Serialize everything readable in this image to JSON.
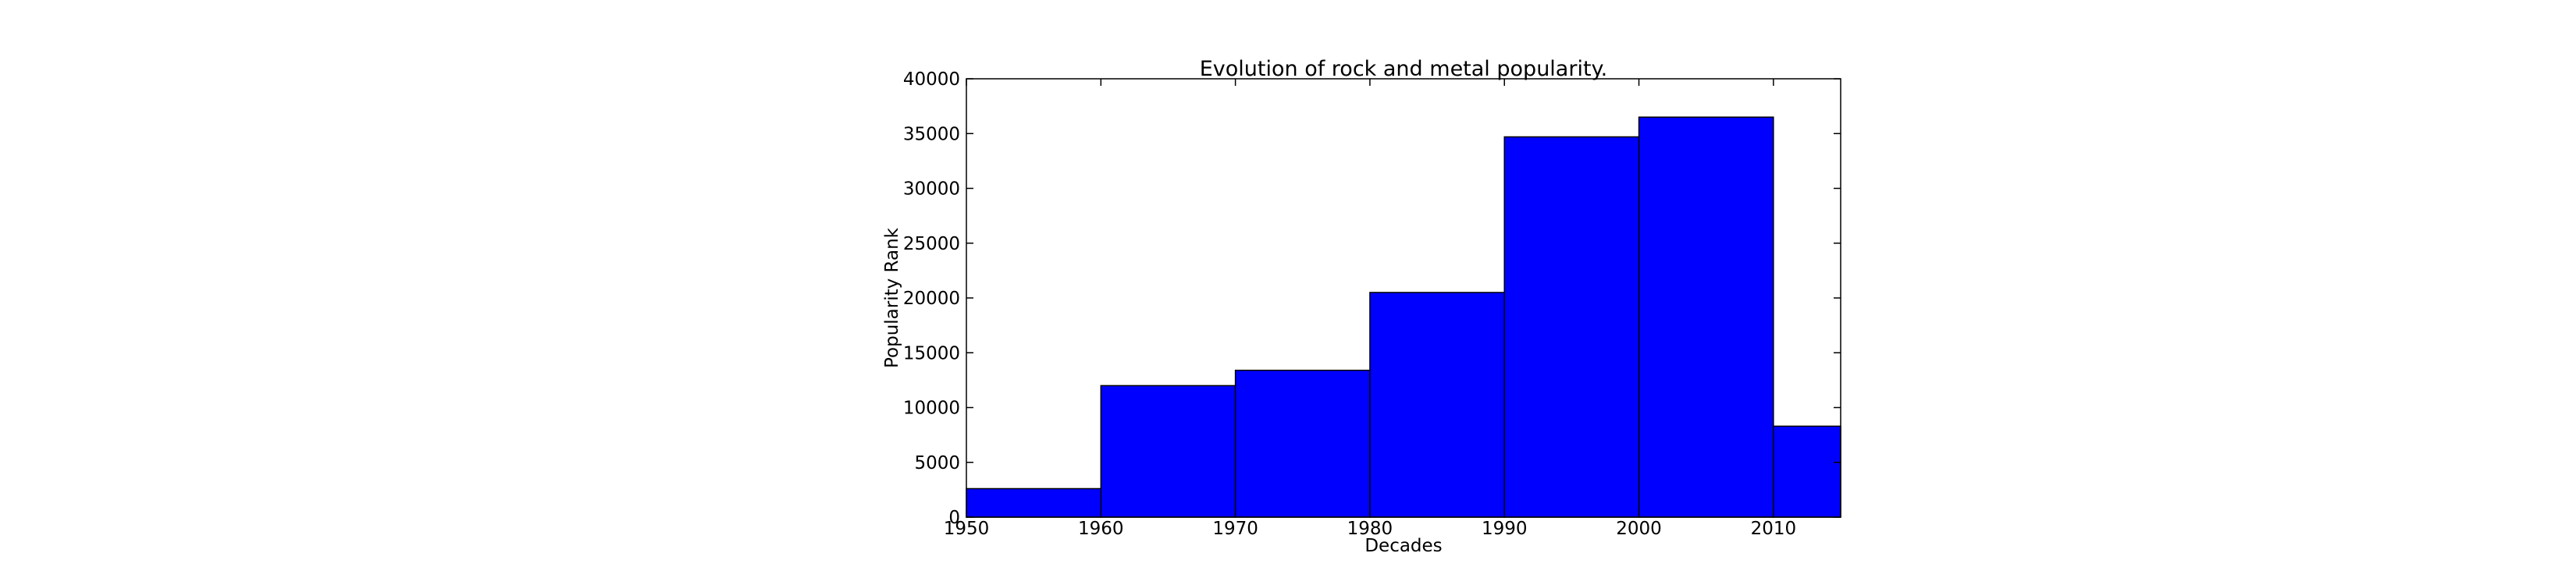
{
  "chart_data": {
    "type": "bar",
    "title": "Evolution of rock and metal popularity.",
    "xlabel": "Decades",
    "ylabel": "Popularity Rank",
    "bins": [
      {
        "start": 1950,
        "end": 1960,
        "value": 2600
      },
      {
        "start": 1960,
        "end": 1970,
        "value": 12000
      },
      {
        "start": 1970,
        "end": 1980,
        "value": 13400
      },
      {
        "start": 1980,
        "end": 1990,
        "value": 20500
      },
      {
        "start": 1990,
        "end": 2000,
        "value": 34700
      },
      {
        "start": 2000,
        "end": 2010,
        "value": 36500
      },
      {
        "start": 2010,
        "end": 2015,
        "value": 8300
      }
    ],
    "xlim": [
      1950,
      2015
    ],
    "ylim": [
      0,
      40000
    ],
    "xticks": [
      "1950",
      "1960",
      "1970",
      "1980",
      "1990",
      "2000",
      "2010"
    ],
    "yticks": [
      "0",
      "5000",
      "10000",
      "15000",
      "20000",
      "25000",
      "30000",
      "35000",
      "40000"
    ],
    "bar_color": "#0000ff",
    "grid": false,
    "legend": "none"
  }
}
